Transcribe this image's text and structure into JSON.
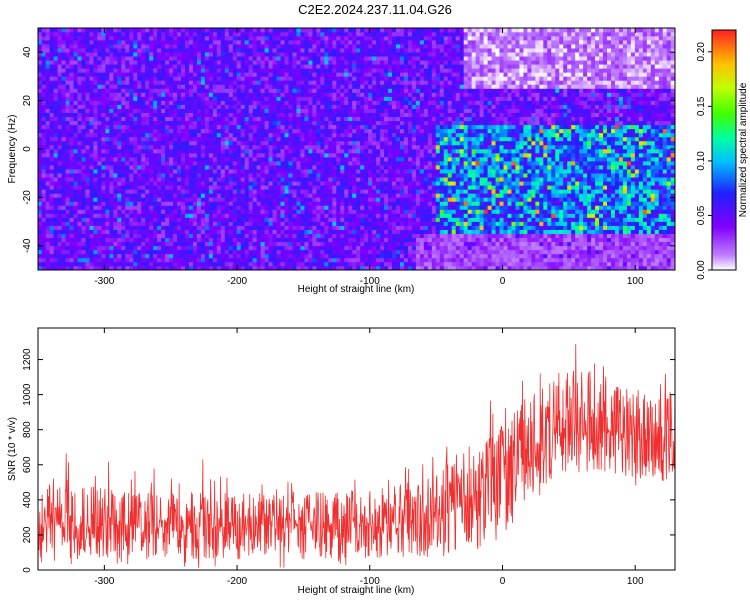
{
  "title": "C2E2.2024.237.11.04.G26",
  "chart_data": [
    {
      "type": "heatmap",
      "title": "C2E2.2024.237.11.04.G26",
      "xlabel": "Height of straight line (km)",
      "ylabel": "Frequency (Hz)",
      "xlim": [
        -350,
        130
      ],
      "ylim": [
        -50,
        50
      ],
      "xticks": [
        -300,
        -200,
        -100,
        0,
        100
      ],
      "xtick_labels": [
        "-300",
        "-200",
        "-100",
        "0",
        "100"
      ],
      "yticks": [
        -40,
        -20,
        0,
        20,
        40
      ],
      "ytick_labels": [
        "-40",
        "-20",
        "0",
        "20",
        "40"
      ],
      "colorbar": {
        "label": "Normalized spectral amplitude",
        "range": [
          0,
          0.22
        ],
        "ticks": [
          0,
          0.05,
          0.1,
          0.15,
          0.2
        ],
        "tick_labels": [
          "0.00",
          "0.05",
          "0.10",
          "0.15",
          "0.20"
        ],
        "colormap": "rainbow (white → purple → blue → cyan → green → yellow → red)"
      },
      "regions": [
        {
          "x": [
            -350,
            -65
          ],
          "y": [
            -50,
            50
          ],
          "level": 0.045,
          "description": "uniform noise"
        },
        {
          "x": [
            -50,
            130
          ],
          "y": [
            -35,
            10
          ],
          "level": 0.085,
          "description": "enhanced signal band"
        },
        {
          "x": [
            -30,
            130
          ],
          "y": [
            25,
            50
          ],
          "level": 0.003,
          "description": "near-zero amplitude"
        },
        {
          "x": [
            -65,
            130
          ],
          "y": [
            -50,
            -35
          ],
          "level": 0.025,
          "description": "low amplitude"
        }
      ],
      "grid": false
    },
    {
      "type": "line",
      "xlabel": "Height of straight line (km)",
      "ylabel": "SNR (10 * v/v)",
      "xlim": [
        -350,
        130
      ],
      "ylim": [
        0,
        1380
      ],
      "xticks": [
        -300,
        -200,
        -100,
        0,
        100
      ],
      "xtick_labels": [
        "-300",
        "-200",
        "-100",
        "0",
        "100"
      ],
      "yticks": [
        0,
        200,
        400,
        600,
        800,
        1000,
        1200
      ],
      "ytick_labels": [
        "0",
        "200",
        "400",
        "600",
        "800",
        "1000",
        "1200"
      ],
      "series_color": "#f03030",
      "envelope": {
        "x": [
          -350,
          -300,
          -250,
          -200,
          -150,
          -100,
          -60,
          -40,
          -20,
          0,
          20,
          40,
          60,
          80,
          100,
          130
        ],
        "lower": [
          60,
          60,
          60,
          60,
          60,
          60,
          70,
          80,
          100,
          200,
          420,
          520,
          560,
          540,
          520,
          480
        ],
        "mean": [
          250,
          240,
          230,
          230,
          235,
          240,
          270,
          320,
          420,
          580,
          700,
          740,
          760,
          760,
          740,
          720
        ],
        "upper": [
          520,
          500,
          470,
          460,
          470,
          480,
          560,
          640,
          760,
          900,
          1050,
          1150,
          1200,
          1150,
          1080,
          1050
        ]
      },
      "grid": false
    }
  ]
}
